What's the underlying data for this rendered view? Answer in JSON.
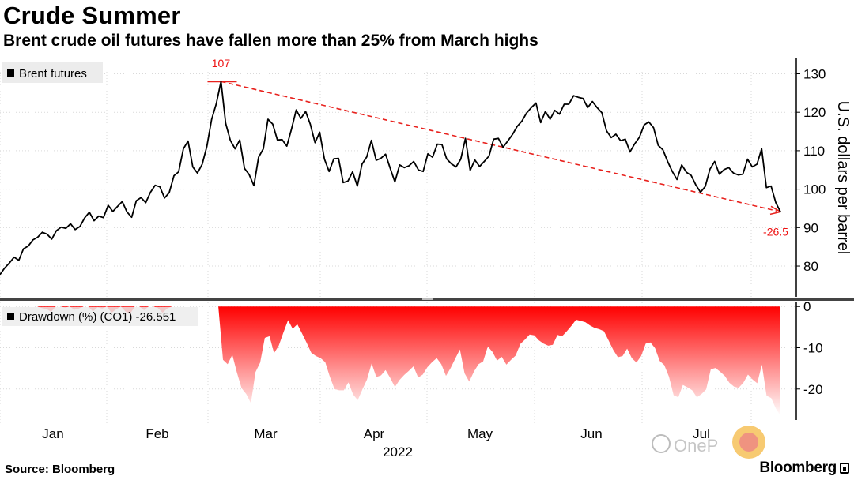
{
  "title": "Crude Summer",
  "subtitle": "Brent crude oil futures have fallen more than 25% from March highs",
  "source": "Source: Bloomberg",
  "brand": "Bloomberg",
  "colors": {
    "line": "#000000",
    "trend": "#e8211d",
    "drawdown_top": "#ff0000",
    "drawdown_bottom": "#ffffff",
    "grid": "#d9d9d9"
  },
  "chart_data": [
    {
      "type": "line",
      "legend": "Brent futures",
      "ylabel": "U.S. dollars per barrel",
      "ylim": [
        72,
        134
      ],
      "yticks": [
        80,
        90,
        100,
        110,
        120,
        130
      ],
      "xtick_labels": [
        "Jan",
        "Feb",
        "Mar",
        "Apr",
        "May",
        "Jun",
        "Jul"
      ],
      "xlabel": "2022",
      "grid": true,
      "legend_position": "top-left",
      "series": [
        {
          "values": [
            77.8,
            79.5,
            80.8,
            82.3,
            81.5,
            84.5,
            85.2,
            86.8,
            87.5,
            88.8,
            88.3,
            87.0,
            89.2,
            90.1,
            89.8,
            91.0,
            89.5,
            90.3,
            92.5,
            94.0,
            91.8,
            93.0,
            92.6,
            95.8,
            94.2,
            95.5,
            96.8,
            94.1,
            92.7,
            97.0,
            97.8,
            96.5,
            99.2,
            101.0,
            100.6,
            97.7,
            99.1,
            103.5,
            104.5,
            110.5,
            112.5,
            105.8,
            104.2,
            106.5,
            111.1,
            118.1,
            122.2,
            128.0,
            117.1,
            112.7,
            110.5,
            112.8,
            105.4,
            103.8,
            100.9,
            108.3,
            110.5,
            118.2,
            116.9,
            112.8,
            112.9,
            111.2,
            115.6,
            120.6,
            118.4,
            120.2,
            116.9,
            112.1,
            114.8,
            107.8,
            104.6,
            107.9,
            108.0,
            101.7,
            102.1,
            104.5,
            100.8,
            106.5,
            108.4,
            112.7,
            107.5,
            108.0,
            109.1,
            105.4,
            101.9,
            106.3,
            105.6,
            106.1,
            107.2,
            105.0,
            104.6,
            109.2,
            108.3,
            111.7,
            111.6,
            107.9,
            106.6,
            105.8,
            107.8,
            113.2,
            104.9,
            107.6,
            105.9,
            107.2,
            108.6,
            113.0,
            113.2,
            110.9,
            112.5,
            114.2,
            116.3,
            117.7,
            119.8,
            121.2,
            122.4,
            117.3,
            120.2,
            118.2,
            120.5,
            119.5,
            122.1,
            122.1,
            124.3,
            123.9,
            123.6,
            121.2,
            122.8,
            121.2,
            119.9,
            115.2,
            113.4,
            114.3,
            112.6,
            113.0,
            109.7,
            111.8,
            113.5,
            116.7,
            117.5,
            116.0,
            111.4,
            110.2,
            107.2,
            104.6,
            102.5,
            106.3,
            104.4,
            103.6,
            101.1,
            99.2,
            100.7,
            105.2,
            107.2,
            103.9,
            105.1,
            105.6,
            104.2,
            103.7,
            103.9,
            107.8,
            105.8,
            106.5,
            110.5,
            100.4,
            100.8,
            96.5,
            94.1
          ]
        }
      ],
      "annotations": {
        "peak_label": "107",
        "end_label": "-26.5"
      }
    },
    {
      "type": "area",
      "legend": "Drawdown (%) (CO1) -26.551",
      "ylim": [
        -27.5,
        1
      ],
      "yticks": [
        0,
        -10,
        -20
      ],
      "grid": true,
      "series": [
        {
          "values": [
            0,
            0,
            0,
            0,
            0,
            0,
            0,
            0,
            0,
            -0.4,
            -0.6,
            -1.3,
            0,
            0,
            -0.3,
            0,
            -0.8,
            -0.5,
            0,
            0,
            -1.2,
            -0.2,
            -0.5,
            0,
            -1.5,
            -0.7,
            0,
            -1.2,
            -1.8,
            0,
            0,
            -0.9,
            0,
            0,
            -0.4,
            -1.5,
            -0.5,
            0,
            0,
            0,
            0,
            0,
            0,
            0,
            0,
            0,
            0,
            0,
            -12.9,
            -14.0,
            -11.7,
            -16.0,
            -19.8,
            -21.2,
            -23.4,
            -15.9,
            -13.6,
            -7.6,
            -7.2,
            -11.3,
            -9.5,
            -6.3,
            -3.3,
            -5.4,
            -4.3,
            -6.5,
            -8.8,
            -11.2,
            -12.0,
            -12.5,
            -13.5,
            -17.0,
            -20.0,
            -20.3,
            -20.3,
            -18.4,
            -21.3,
            -22.7,
            -20.1,
            -17.7,
            -13.8,
            -17.1,
            -16.7,
            -15.4,
            -17.3,
            -19.5,
            -17.8,
            -16.6,
            -15.6,
            -14.5,
            -17.2,
            -16.5,
            -14.7,
            -13.5,
            -12.5,
            -14.0,
            -16.8,
            -14.9,
            -12.6,
            -10.4,
            -16.2,
            -18.2,
            -15.8,
            -14.0,
            -13.3,
            -9.7,
            -11.0,
            -13.1,
            -12.2,
            -14.1,
            -12.9,
            -11.9,
            -9.1,
            -8.0,
            -6.8,
            -7.0,
            -8.2,
            -9.0,
            -9.5,
            -9.3,
            -6.9,
            -7.2,
            -6.0,
            -4.7,
            -3.2,
            -3.5,
            -3.8,
            -4.6,
            -5.2,
            -5.5,
            -6.0,
            -8.2,
            -10.5,
            -12.3,
            -12.0,
            -10.2,
            -12.5,
            -13.6,
            -12.0,
            -9.0,
            -8.7,
            -10.1,
            -13.2,
            -14.2,
            -17.0,
            -21.5,
            -22.0,
            -19.0,
            -19.6,
            -20.3,
            -22.0,
            -21.2,
            -20.1,
            -15.2,
            -14.9,
            -15.8,
            -16.8,
            -18.5,
            -19.4,
            -19.7,
            -18.5,
            -16.5,
            -17.7,
            -18.6,
            -14.1,
            -21.6,
            -22.2,
            -24.7,
            -26.5
          ]
        }
      ]
    }
  ],
  "watermark": "OneP"
}
